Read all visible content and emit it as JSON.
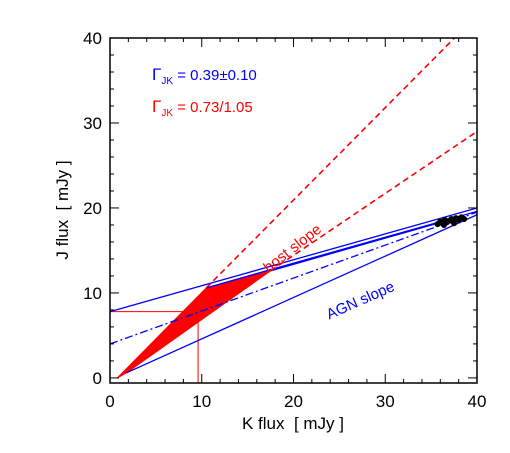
{
  "chart_data": {
    "type": "scatter",
    "xlabel": "K flux  [ mJy ]",
    "ylabel": "J flux  [ mJy ]",
    "xlim": [
      0,
      40
    ],
    "ylim": [
      -0.6,
      40
    ],
    "xticks": [
      "0",
      "10",
      "20",
      "30",
      "40"
    ],
    "yticks": [
      "0",
      "10",
      "20",
      "30",
      "40"
    ],
    "grid": false,
    "legend": {
      "gamma_agn": {
        "sym": "Γ",
        "sub": "JK",
        "value": " = 0.39±0.10",
        "color": "#0000ff"
      },
      "gamma_host": {
        "sym": "Γ",
        "sub": "JK",
        "value": " = 0.73/1.05",
        "color": "#ff0000"
      }
    },
    "annotations": [
      {
        "text": "host slope",
        "x": 20.2,
        "y": 14.8,
        "angle": -38,
        "color": "#ff0000"
      },
      {
        "text": "AGN slope",
        "x": 27.5,
        "y": 8.6,
        "angle": -24,
        "color": "#0000ff"
      }
    ],
    "host_region": {
      "color": "#ff0000",
      "polygon": [
        [
          0.8,
          0
        ],
        [
          10.5,
          10.6
        ],
        [
          17.5,
          12.6
        ],
        [
          1.8,
          0.6
        ]
      ]
    },
    "host_slope_lines": [
      {
        "style": "dashed",
        "color": "#ff0000",
        "points": [
          [
            10.5,
            10.6
          ],
          [
            38,
            40.5
          ]
        ]
      },
      {
        "style": "dashed",
        "color": "#ff0000",
        "points": [
          [
            17.5,
            12.6
          ],
          [
            40,
            29
          ]
        ]
      }
    ],
    "agn_slope_lines": [
      {
        "style": "solid",
        "color": "#0000ff",
        "points": [
          [
            0,
            7.8
          ],
          [
            40,
            20
          ]
        ]
      },
      {
        "style": "solid",
        "color": "#0000ff",
        "points": [
          [
            10.5,
            10.6
          ],
          [
            40,
            19.6
          ]
        ]
      },
      {
        "style": "solid",
        "color": "#0000ff",
        "points": [
          [
            1.8,
            0.6
          ],
          [
            40,
            19.2
          ]
        ]
      },
      {
        "style": "solid",
        "color": "#0000ff",
        "points": [
          [
            17.5,
            12.6
          ],
          [
            37,
            18.6
          ]
        ]
      },
      {
        "style": "dashdot",
        "color": "#0000ff",
        "points": [
          [
            0,
            4
          ],
          [
            40,
            19.5
          ]
        ]
      }
    ],
    "host_value_guides": [
      {
        "color": "#ff0000",
        "points": [
          [
            0,
            7.8
          ],
          [
            9.6,
            7.8
          ],
          [
            9.6,
            -0.6
          ]
        ]
      }
    ],
    "agn_points": {
      "color": "#000000",
      "x": [
        35.7,
        36.0,
        36.2,
        36.5,
        36.7,
        37.0,
        37.2,
        37.4,
        37.7,
        38.0,
        38.3,
        38.6,
        36.4,
        37.5
      ],
      "y": [
        18.1,
        18.4,
        18.2,
        18.6,
        18.3,
        18.5,
        18.7,
        18.4,
        18.8,
        18.6,
        18.9,
        18.7,
        18.0,
        18.2
      ]
    }
  }
}
